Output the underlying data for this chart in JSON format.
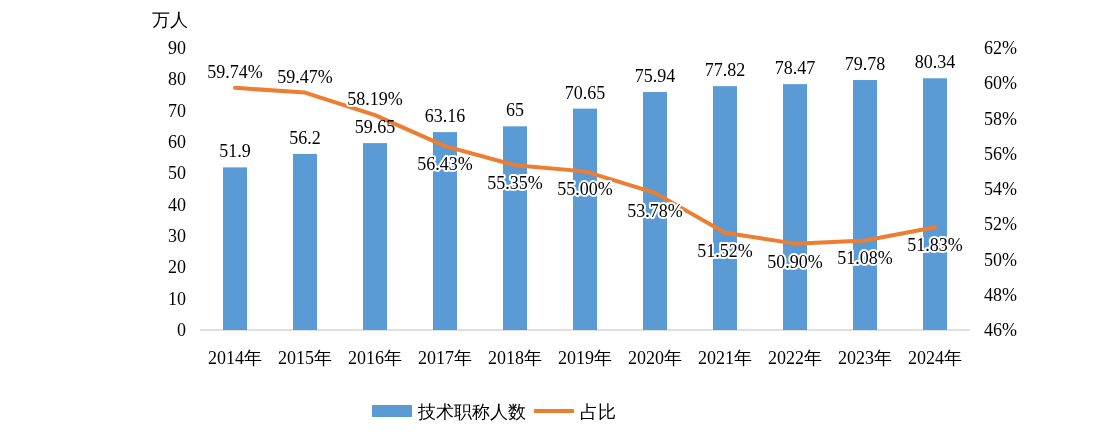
{
  "chart_data": {
    "type": "bar",
    "ylabel": "万人",
    "categories": [
      "2014年",
      "2015年",
      "2016年",
      "2017年",
      "2018年",
      "2019年",
      "2020年",
      "2021年",
      "2022年",
      "2023年",
      "2024年"
    ],
    "series": [
      {
        "name": "技术职称人数",
        "color": "#5b9bd5",
        "values": [
          51.9,
          56.2,
          59.65,
          63.16,
          65,
          70.65,
          75.94,
          77.82,
          78.47,
          79.78,
          80.34
        ]
      },
      {
        "name": "占比",
        "type": "line",
        "axis": "y2",
        "color": "#ed7d31",
        "values": [
          59.74,
          59.47,
          58.19,
          56.43,
          55.35,
          55.0,
          53.78,
          51.52,
          50.9,
          51.08,
          51.83
        ],
        "value_labels": [
          "59.74%",
          "59.47%",
          "58.19%",
          "56.43%",
          "55.35%",
          "55.00%",
          "53.78%",
          "51.52%",
          "50.90%",
          "51.08%",
          "51.83%"
        ]
      }
    ],
    "data_labels": true,
    "ylim": [
      0,
      90
    ],
    "yticks": [
      0,
      10,
      20,
      30,
      40,
      50,
      60,
      70,
      80,
      90
    ],
    "y2lim": [
      46,
      62
    ],
    "y2ticks": [
      {
        "value": 46,
        "label": "46%"
      },
      {
        "value": 48,
        "label": "48%"
      },
      {
        "value": 50,
        "label": "50%"
      },
      {
        "value": 52,
        "label": "52%"
      },
      {
        "value": 54,
        "label": "54%"
      },
      {
        "value": 56,
        "label": "56%"
      },
      {
        "value": 58,
        "label": "58%"
      },
      {
        "value": 60,
        "label": "60%"
      },
      {
        "value": 62,
        "label": "62%"
      }
    ],
    "grid": false,
    "legend": "bottom",
    "marker": "none",
    "line_style": "solid"
  }
}
